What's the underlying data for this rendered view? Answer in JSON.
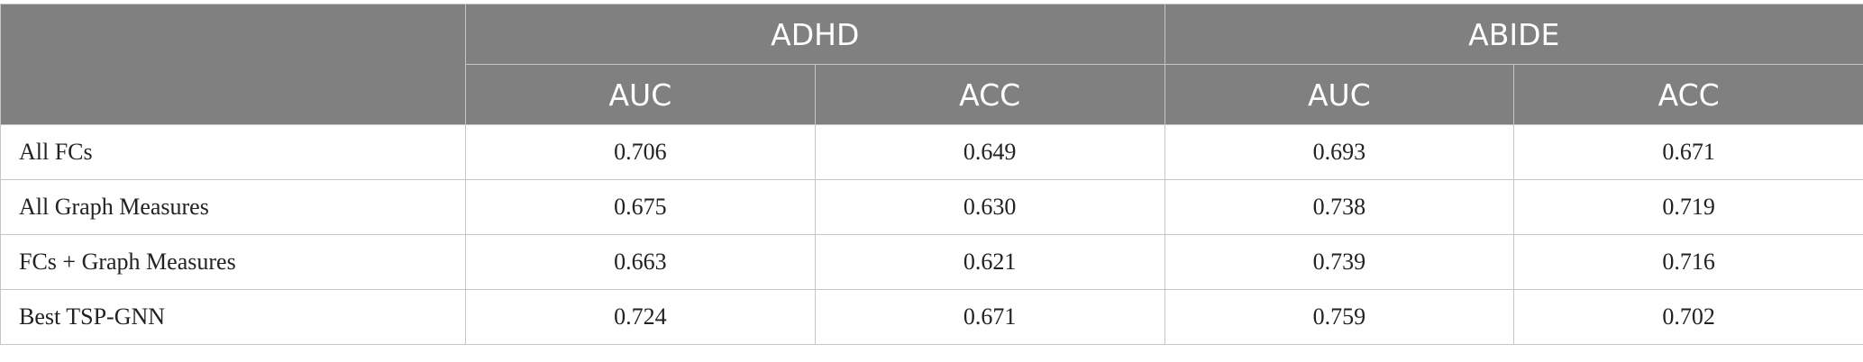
{
  "header": {
    "groups": [
      "ADHD",
      "ABIDE"
    ],
    "metrics": [
      "AUC",
      "ACC",
      "AUC",
      "ACC"
    ]
  },
  "rows": [
    {
      "label": "All FCs",
      "values": [
        "0.706",
        "0.649",
        "0.693",
        "0.671"
      ]
    },
    {
      "label": "All Graph Measures",
      "values": [
        "0.675",
        "0.630",
        "0.738",
        "0.719"
      ]
    },
    {
      "label": "FCs + Graph Measures",
      "values": [
        "0.663",
        "0.621",
        "0.739",
        "0.716"
      ]
    },
    {
      "label": "Best TSP-GNN",
      "values": [
        "0.724",
        "0.671",
        "0.759",
        "0.702"
      ]
    }
  ]
}
